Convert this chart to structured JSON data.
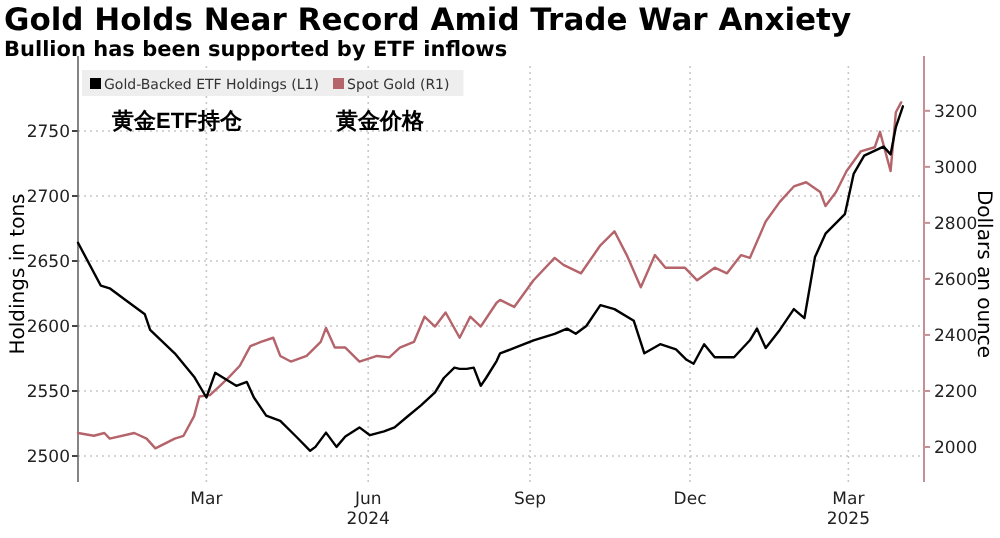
{
  "chart_data": {
    "type": "line",
    "title": "Gold Holds Near Record Amid Trade War Anxiety",
    "subtitle": "Bullion has been supported by ETF inflows",
    "ylabel": "Holdings in tons",
    "y2label": "Dollars an ounce",
    "xlim": [
      "2024-01-02",
      "2025-04-27"
    ],
    "xticks": [
      {
        "value": "2024-03-15",
        "label": "Mar"
      },
      {
        "value": "2024-06-15",
        "label": "Jun\n2024"
      },
      {
        "value": "2024-09-15",
        "label": "Sep"
      },
      {
        "value": "2024-12-15",
        "label": "Dec"
      },
      {
        "value": "2025-03-15",
        "label": "Mar\n2025"
      }
    ],
    "ylim": [
      2480,
      2800
    ],
    "yticks": [
      2500,
      2550,
      2600,
      2650,
      2700,
      2750
    ],
    "y2lim": [
      1875,
      3360
    ],
    "y2ticks": [
      2000,
      2200,
      2400,
      2600,
      2800,
      3000,
      3200
    ],
    "grid": true,
    "legend": "top left",
    "annotations": [
      "黄金ETF持仓",
      "黄金价格"
    ],
    "series": [
      {
        "name": "Gold-Backed ETF Holdings (L1)",
        "color": "#000000",
        "x": [
          "2024-01-02",
          "2024-01-15",
          "2024-01-20",
          "2024-01-29",
          "2024-02-09",
          "2024-02-12",
          "2024-02-26",
          "2024-03-08",
          "2024-03-15",
          "2024-03-20",
          "2024-03-26",
          "2024-04-01",
          "2024-04-07",
          "2024-04-11",
          "2024-04-18",
          "2024-04-26",
          "2024-05-05",
          "2024-05-13",
          "2024-05-16",
          "2024-05-22",
          "2024-05-28",
          "2024-06-02",
          "2024-06-10",
          "2024-06-16",
          "2024-06-24",
          "2024-06-30",
          "2024-07-07",
          "2024-07-15",
          "2024-07-23",
          "2024-07-28",
          "2024-08-03",
          "2024-08-06",
          "2024-08-10",
          "2024-08-14",
          "2024-08-18",
          "2024-08-21",
          "2024-08-27",
          "2024-08-29",
          "2024-09-04",
          "2024-09-17",
          "2024-09-29",
          "2024-10-06",
          "2024-10-11",
          "2024-10-17",
          "2024-10-25",
          "2024-11-02",
          "2024-11-13",
          "2024-11-19",
          "2024-11-28",
          "2024-12-07",
          "2024-12-13",
          "2024-12-17",
          "2024-12-23",
          "2024-12-29",
          "2025-01-09",
          "2025-01-18",
          "2025-01-22",
          "2025-01-27",
          "2025-02-04",
          "2025-02-12",
          "2025-02-18",
          "2025-02-24",
          "2025-03-02",
          "2025-03-13",
          "2025-03-18",
          "2025-03-24",
          "2025-04-04",
          "2025-04-08",
          "2025-04-11",
          "2025-04-15"
        ],
        "values": [
          2664,
          2631,
          2629,
          2620,
          2609,
          2597,
          2579,
          2561,
          2545,
          2564,
          2559,
          2554,
          2557,
          2545,
          2531,
          2527,
          2515,
          2504,
          2507,
          2518,
          2507,
          2515,
          2522,
          2516,
          2519,
          2522,
          2530,
          2539,
          2549,
          2560,
          2568,
          2567,
          2567,
          2568,
          2554,
          2560,
          2573,
          2579,
          2582,
          2589,
          2594,
          2598,
          2594,
          2600,
          2616,
          2613,
          2604,
          2579,
          2586,
          2582,
          2574,
          2571,
          2586,
          2576,
          2576,
          2589,
          2598,
          2583,
          2597,
          2613,
          2606,
          2653,
          2671,
          2686,
          2717,
          2731,
          2738,
          2732,
          2753,
          2769
        ]
      },
      {
        "name": "Spot Gold (R1)",
        "color": "#b4646a",
        "axis": "y2",
        "x": [
          "2024-01-02",
          "2024-01-11",
          "2024-01-17",
          "2024-01-20",
          "2024-02-03",
          "2024-02-10",
          "2024-02-15",
          "2024-02-26",
          "2024-03-02",
          "2024-03-08",
          "2024-03-11",
          "2024-03-17",
          "2024-03-23",
          "2024-03-28",
          "2024-04-03",
          "2024-04-09",
          "2024-04-15",
          "2024-04-22",
          "2024-04-26",
          "2024-05-02",
          "2024-05-11",
          "2024-05-19",
          "2024-05-22",
          "2024-05-27",
          "2024-06-02",
          "2024-06-10",
          "2024-06-20",
          "2024-06-27",
          "2024-07-03",
          "2024-07-11",
          "2024-07-17",
          "2024-07-23",
          "2024-07-29",
          "2024-08-06",
          "2024-08-12",
          "2024-08-18",
          "2024-08-27",
          "2024-08-29",
          "2024-09-06",
          "2024-09-17",
          "2024-09-29",
          "2024-10-04",
          "2024-10-14",
          "2024-10-25",
          "2024-11-02",
          "2024-11-09",
          "2024-11-17",
          "2024-11-25",
          "2024-12-01",
          "2024-12-12",
          "2024-12-19",
          "2024-12-29",
          "2025-01-05",
          "2025-01-13",
          "2025-01-18",
          "2025-01-27",
          "2025-02-04",
          "2025-02-12",
          "2025-02-19",
          "2025-02-27",
          "2025-03-02",
          "2025-03-08",
          "2025-03-14",
          "2025-03-22",
          "2025-03-30",
          "2025-04-02",
          "2025-04-08",
          "2025-04-11",
          "2025-04-14"
        ],
        "values": [
          2050,
          2040,
          2050,
          2030,
          2050,
          2030,
          1995,
          2030,
          2040,
          2110,
          2180,
          2185,
          2220,
          2250,
          2290,
          2360,
          2375,
          2390,
          2325,
          2305,
          2325,
          2375,
          2425,
          2355,
          2355,
          2305,
          2325,
          2320,
          2355,
          2375,
          2465,
          2430,
          2480,
          2390,
          2465,
          2430,
          2515,
          2525,
          2500,
          2595,
          2675,
          2650,
          2620,
          2720,
          2770,
          2685,
          2570,
          2685,
          2640,
          2640,
          2595,
          2640,
          2620,
          2685,
          2675,
          2805,
          2875,
          2930,
          2945,
          2910,
          2860,
          2910,
          2985,
          3055,
          3070,
          3125,
          2985,
          3195,
          3230
        ]
      }
    ]
  }
}
